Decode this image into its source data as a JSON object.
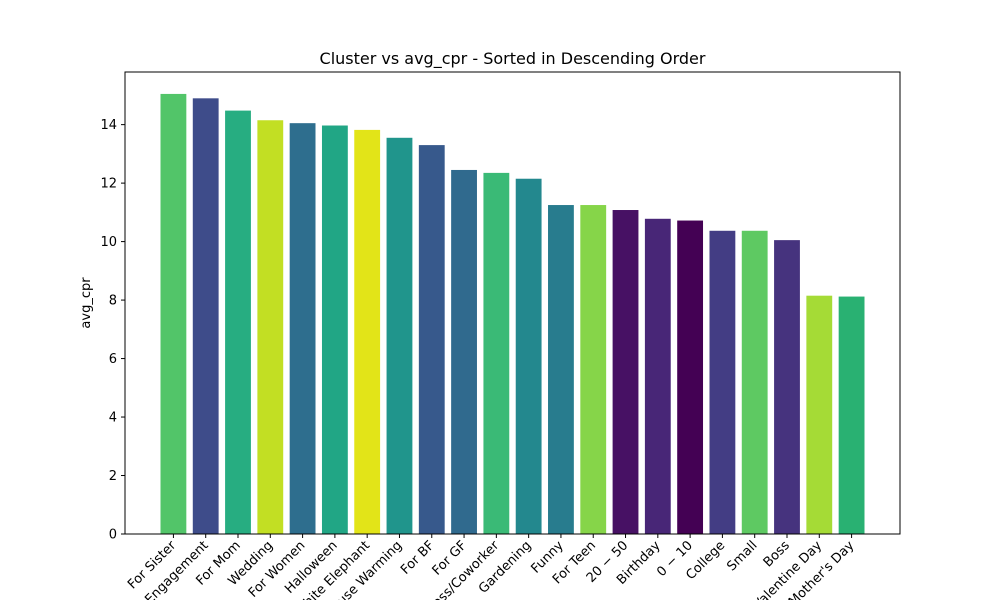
{
  "chart_data": {
    "type": "bar",
    "title": "Cluster vs avg_cpr - Sorted in Descending Order",
    "xlabel": "",
    "ylabel": "avg_cpr",
    "ylim": [
      0,
      15.8
    ],
    "yticks": [
      0,
      2,
      4,
      6,
      8,
      10,
      12,
      14
    ],
    "grid": false,
    "categories": [
      "For Sister",
      "Engagement",
      "For Mom",
      "Wedding",
      "For Women",
      "Halloween",
      "White Elephant",
      "House Warming",
      "For BF",
      "For GF",
      "Boss/Coworker",
      "Gardening",
      "Funny",
      "For Teen",
      "20 − 50",
      "Birthday",
      "0 − 10",
      "College",
      "Small",
      "Boss",
      "Valentine Day",
      "Mother's Day"
    ],
    "values": [
      15.05,
      14.9,
      14.48,
      14.15,
      14.05,
      13.97,
      13.82,
      13.55,
      13.3,
      12.45,
      12.35,
      12.15,
      11.25,
      11.25,
      11.08,
      10.78,
      10.72,
      10.37,
      10.37,
      10.05,
      8.15,
      8.12
    ],
    "colors": [
      "#52c569",
      "#3e4c8a",
      "#27ad81",
      "#c2df23",
      "#2e6e8e",
      "#21a685",
      "#e2e418",
      "#20958c",
      "#37598c",
      "#306a8e",
      "#3aba76",
      "#23888e",
      "#287c8e",
      "#86d549",
      "#471164",
      "#482677",
      "#440154",
      "#433d84",
      "#5ec962",
      "#46337e",
      "#a5db36",
      "#29b172"
    ]
  }
}
